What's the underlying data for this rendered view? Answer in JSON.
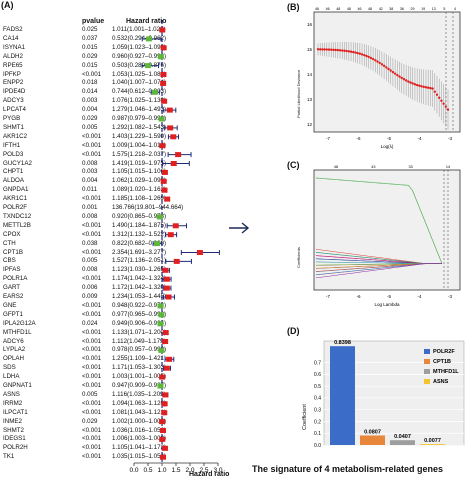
{
  "panels": {
    "a": "(A)",
    "b": "(B)",
    "c": "(C)",
    "d": "(D)"
  },
  "forest": {
    "header_pvalue": "pvalue",
    "header_hr": "Hazard ratio",
    "xlabel": "Hazard ratio",
    "xticks": [
      "0.0",
      "0.5",
      "1.0",
      "1.5",
      "2.0",
      "2.5",
      "3.0"
    ],
    "xlim": [
      0.0,
      3.0
    ],
    "rows": [
      {
        "gene": "FADS2",
        "p": "0.025",
        "hr": "1.011(1.001–1.020)",
        "est": 1.011,
        "lo": 1.001,
        "hi": 1.02,
        "color": "#e02020"
      },
      {
        "gene": "CA14",
        "p": "0.037",
        "hr": "0.532(0.294–0.962)",
        "est": 0.532,
        "lo": 0.294,
        "hi": 0.962,
        "color": "#5db83a"
      },
      {
        "gene": "ISYNA1",
        "p": "0.015",
        "hr": "1.059(1.023–1.096)",
        "est": 1.059,
        "lo": 1.023,
        "hi": 1.096,
        "color": "#e02020"
      },
      {
        "gene": "ALDH2",
        "p": "0.029",
        "hr": "0.960(0.927–0.996)",
        "est": 0.96,
        "lo": 0.927,
        "hi": 0.996,
        "color": "#5db83a"
      },
      {
        "gene": "RPE65",
        "p": "0.015",
        "hr": "0.503(0.289–0.876)",
        "est": 0.503,
        "lo": 0.289,
        "hi": 0.876,
        "color": "#5db83a"
      },
      {
        "gene": "IPFKP",
        "p": "<0.001",
        "hr": "1.053(1.025–1.082)",
        "est": 1.053,
        "lo": 1.025,
        "hi": 1.082,
        "color": "#e02020"
      },
      {
        "gene": "ENPP2",
        "p": "0.018",
        "hr": "1.040(1.007–1.074)",
        "est": 1.04,
        "lo": 1.007,
        "hi": 1.074,
        "color": "#e02020"
      },
      {
        "gene": "IPDE4D",
        "p": "0.014",
        "hr": "0.744(0.612–0.903)",
        "est": 0.744,
        "lo": 0.612,
        "hi": 0.903,
        "color": "#5db83a"
      },
      {
        "gene": "ADCY3",
        "p": "0.003",
        "hr": "1.076(1.025–1.130)",
        "est": 1.076,
        "lo": 1.025,
        "hi": 1.13,
        "color": "#e02020"
      },
      {
        "gene": "LPCAT4",
        "p": "0.004",
        "hr": "1.279(1.046–1.493)",
        "est": 1.279,
        "lo": 1.046,
        "hi": 1.493,
        "color": "#e02020"
      },
      {
        "gene": "PYGB",
        "p": "0.029",
        "hr": "0.987(0.979–0.996)",
        "est": 0.987,
        "lo": 0.979,
        "hi": 0.996,
        "color": "#5db83a"
      },
      {
        "gene": "SHMT1",
        "p": "0.005",
        "hr": "1.292(1.082–1.543)",
        "est": 1.292,
        "lo": 1.082,
        "hi": 1.543,
        "color": "#e02020"
      },
      {
        "gene": "AKR1C2",
        "p": "<0.001",
        "hr": "1.403(1.229–1.590)",
        "est": 1.403,
        "lo": 1.229,
        "hi": 1.59,
        "color": "#e02020"
      },
      {
        "gene": "IFTH1",
        "p": "<0.001",
        "hr": "1.009(1.004–1.014)",
        "est": 1.009,
        "lo": 1.004,
        "hi": 1.014,
        "color": "#e02020"
      },
      {
        "gene": "POLD3",
        "p": "<0.001",
        "hr": "1.575(1.218–2.037)",
        "est": 1.575,
        "lo": 1.218,
        "hi": 2.037,
        "color": "#e02020"
      },
      {
        "gene": "GUCY1A2",
        "p": "0.008",
        "hr": "1.419(1.019–1.975)",
        "est": 1.419,
        "lo": 1.019,
        "hi": 1.975,
        "color": "#e02020"
      },
      {
        "gene": "CHPT1",
        "p": "0.003",
        "hr": "1.105(1.015–1.106)",
        "est": 1.105,
        "lo": 1.015,
        "hi": 1.106,
        "color": "#e02020"
      },
      {
        "gene": "ALDOA",
        "p": "0.004",
        "hr": "1.062(1.029–1.096)",
        "est": 1.062,
        "lo": 1.029,
        "hi": 1.096,
        "color": "#e02020"
      },
      {
        "gene": "GNPDA1",
        "p": "0.011",
        "hr": "1.089(1.020–1.162)",
        "est": 1.089,
        "lo": 1.02,
        "hi": 1.162,
        "color": "#e02020"
      },
      {
        "gene": "AKR1C1",
        "p": "<0.001",
        "hr": "1.185(1.108–1.269)",
        "est": 1.185,
        "lo": 1.108,
        "hi": 1.269,
        "color": "#e02020"
      },
      {
        "gene": "POLR2F",
        "p": "0.001",
        "hr": "136.766(19.801–944.664)",
        "est": null,
        "lo": null,
        "hi": null,
        "color": "#e02020"
      },
      {
        "gene": "TXNDC12",
        "p": "0.008",
        "hr": "0.920(0.865–0.978)",
        "est": 0.92,
        "lo": 0.865,
        "hi": 0.978,
        "color": "#5db83a"
      },
      {
        "gene": "METTL2B",
        "p": "<0.001",
        "hr": "1.490(1.184–1.875)",
        "est": 1.49,
        "lo": 1.184,
        "hi": 1.875,
        "color": "#e02020"
      },
      {
        "gene": "CPOX",
        "p": "<0.001",
        "hr": "1.312(1.132–1.522)",
        "est": 1.312,
        "lo": 1.132,
        "hi": 1.522,
        "color": "#e02020"
      },
      {
        "gene": "CTH",
        "p": "0.038",
        "hr": "0.822(0.682–0.990)",
        "est": 0.822,
        "lo": 0.682,
        "hi": 0.99,
        "color": "#5db83a"
      },
      {
        "gene": "CPT1B",
        "p": "<0.001",
        "hr": "2.354(1.691–3.277)",
        "est": 2.354,
        "lo": 1.691,
        "hi": 3.277,
        "color": "#e02020"
      },
      {
        "gene": "CBS",
        "p": "0.005",
        "hr": "1.527(1.136–2.051)",
        "est": 1.527,
        "lo": 1.136,
        "hi": 2.051,
        "color": "#e02020"
      },
      {
        "gene": "IPFAS",
        "p": "0.008",
        "hr": "1.123(1.030–1.265)",
        "est": 1.123,
        "lo": 1.03,
        "hi": 1.265,
        "color": "#e02020"
      },
      {
        "gene": "POLR1A",
        "p": "<0.001",
        "hr": "1.174(1.042–1.324)",
        "est": 1.174,
        "lo": 1.042,
        "hi": 1.324,
        "color": "#e02020"
      },
      {
        "gene": "GART",
        "p": "0.006",
        "hr": "1.172(1.042–1.320)",
        "est": 1.172,
        "lo": 1.042,
        "hi": 1.32,
        "color": "#e02020"
      },
      {
        "gene": "EARS2",
        "p": "0.009",
        "hr": "1.234(1.053–1.445)",
        "est": 1.234,
        "lo": 1.053,
        "hi": 1.445,
        "color": "#e02020"
      },
      {
        "gene": "GNE",
        "p": "<0.001",
        "hr": "0.948(0.922–0.976)",
        "est": 0.948,
        "lo": 0.922,
        "hi": 0.976,
        "color": "#5db83a"
      },
      {
        "gene": "GFPT1",
        "p": "<0.001",
        "hr": "0.977(0.965–0.990)",
        "est": 0.977,
        "lo": 0.965,
        "hi": 0.99,
        "color": "#5db83a"
      },
      {
        "gene": "IPLA2G12A",
        "p": "0.024",
        "hr": "0.949(0.906–0.994)",
        "est": 0.949,
        "lo": 0.906,
        "hi": 0.994,
        "color": "#5db83a"
      },
      {
        "gene": "MTHFD1L",
        "p": "<0.001",
        "hr": "1.133(1.071–1.200)",
        "est": 1.133,
        "lo": 1.071,
        "hi": 1.2,
        "color": "#e02020"
      },
      {
        "gene": "ADCY6",
        "p": "<0.001",
        "hr": "1.112(1.049–1.179)",
        "est": 1.112,
        "lo": 1.049,
        "hi": 1.179,
        "color": "#e02020"
      },
      {
        "gene": "LYPLA2",
        "p": "<0.001",
        "hr": "0.978(0.957–0.990)",
        "est": 0.978,
        "lo": 0.957,
        "hi": 0.99,
        "color": "#5db83a"
      },
      {
        "gene": "OPLAH",
        "p": "<0.001",
        "hr": "1.255(1.109–1.421)",
        "est": 1.255,
        "lo": 1.109,
        "hi": 1.421,
        "color": "#e02020"
      },
      {
        "gene": "SDS",
        "p": "<0.001",
        "hr": "1.171(1.053–1.303)",
        "est": 1.171,
        "lo": 1.053,
        "hi": 1.303,
        "color": "#e02020"
      },
      {
        "gene": "LDHA",
        "p": "<0.001",
        "hr": "1.003(1.001–1.005)",
        "est": 1.003,
        "lo": 1.001,
        "hi": 1.005,
        "color": "#e02020"
      },
      {
        "gene": "GNPNAT1",
        "p": "<0.001",
        "hr": "0.947(0.909–0.987)",
        "est": 0.947,
        "lo": 0.909,
        "hi": 0.987,
        "color": "#5db83a"
      },
      {
        "gene": "ASNS",
        "p": "0.005",
        "hr": "1.116(1.035–1.209)",
        "est": 1.116,
        "lo": 1.035,
        "hi": 1.209,
        "color": "#e02020"
      },
      {
        "gene": "IRRM2",
        "p": "<0.001",
        "hr": "1.094(1.063–1.126)",
        "est": 1.094,
        "lo": 1.063,
        "hi": 1.126,
        "color": "#e02020"
      },
      {
        "gene": "ILPCAT1",
        "p": "<0.001",
        "hr": "1.081(1.043–1.121)",
        "est": 1.081,
        "lo": 1.043,
        "hi": 1.121,
        "color": "#e02020"
      },
      {
        "gene": "INME2",
        "p": "0.029",
        "hr": "1.002(1.000–1.004)",
        "est": 1.002,
        "lo": 1.0,
        "hi": 1.004,
        "color": "#e02020"
      },
      {
        "gene": "SHMT2",
        "p": "<0.001",
        "hr": "1.036(1.016–1.056)",
        "est": 1.036,
        "lo": 1.016,
        "hi": 1.056,
        "color": "#e02020"
      },
      {
        "gene": "IDEGS1",
        "p": "<0.001",
        "hr": "1.006(1.003–1.009)",
        "est": 1.006,
        "lo": 1.003,
        "hi": 1.009,
        "color": "#e02020"
      },
      {
        "gene": "POLR2H",
        "p": "<0.001",
        "hr": "1.105(1.041–1.173)",
        "est": 1.105,
        "lo": 1.041,
        "hi": 1.173,
        "color": "#e02020"
      },
      {
        "gene": "TK1",
        "p": "<0.001",
        "hr": "1.035(1.015–1.054)",
        "est": 1.035,
        "lo": 1.015,
        "hi": 1.054,
        "color": "#e02020"
      }
    ]
  },
  "panel_b": {
    "top_ticks": [
      "46",
      "46",
      "48",
      "48",
      "46",
      "48",
      "42",
      "38",
      "36",
      "29",
      "19",
      "13",
      "5",
      "4"
    ],
    "xlabel": "Log(λ)",
    "ylabel": "Partial Likelihood Deviance",
    "xticks": [
      "-7",
      "-6",
      "-5",
      "-4",
      "-3"
    ],
    "yticks": [
      "12",
      "13",
      "14",
      "15",
      "16"
    ]
  },
  "panel_c": {
    "top_ticks": [
      "48",
      "43",
      "33",
      "14"
    ],
    "xlabel": "Log Lambda",
    "ylabel": "Coefficients",
    "xticks": [
      "-7",
      "-6",
      "-5",
      "-4",
      "-3"
    ]
  },
  "chart_data": [
    {
      "type": "bar",
      "title": "The signature of 4 metabolism-related genes",
      "ylabel": "Coefficient",
      "categories": [
        "POLR2F",
        "CPT1B",
        "MTHFD1L",
        "ASNS"
      ],
      "values": [
        0.8398,
        0.0807,
        0.0407,
        0.0077
      ],
      "value_labels": [
        "0.8398",
        "0.0807",
        "0.0407",
        "0.0077"
      ],
      "colors": [
        "#3a6cc8",
        "#e8873a",
        "#9e9e9e",
        "#f2c430"
      ],
      "ylim": [
        0,
        1
      ],
      "yticks": [
        "0.0",
        "0.1",
        "0.2",
        "0.3",
        "0.4",
        "0.5",
        "0.6",
        "0.7"
      ],
      "legend": [
        "POLR2F",
        "CPT1B",
        "MTHFD1L",
        "ASNS"
      ],
      "legend_position": "top-right"
    }
  ]
}
